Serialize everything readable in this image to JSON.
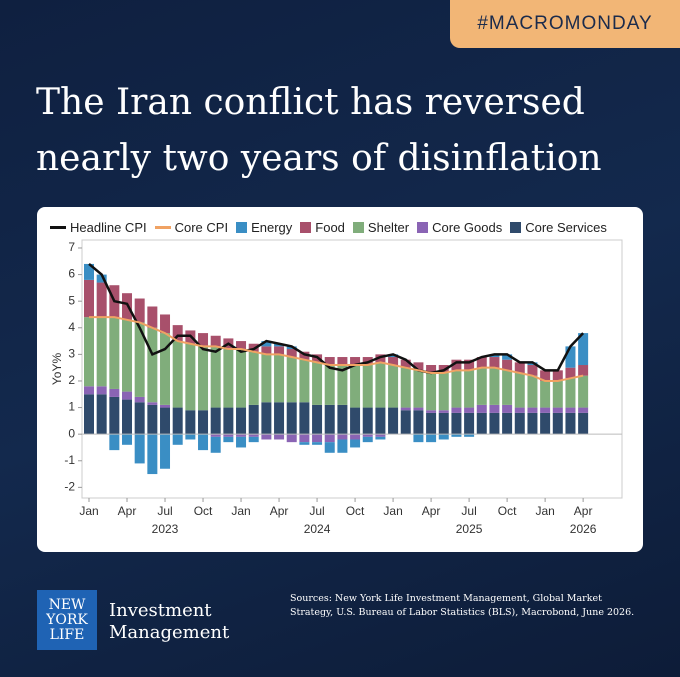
{
  "header": {
    "tag": "#MACROMONDAY",
    "title": [
      "The Iran conflict has reversed",
      "nearly two years of disinflation"
    ]
  },
  "chart_data": {
    "type": "bar",
    "stacked": true,
    "y_label": "YoY%",
    "categories": [
      "Jan",
      null,
      null,
      "Apr",
      null,
      null,
      "Jul",
      null,
      null,
      "Oct",
      null,
      null,
      "Jan",
      null,
      null,
      "Apr",
      null,
      null,
      "Jul",
      null,
      null,
      "Oct",
      null,
      null,
      "Jan",
      null,
      null,
      "Apr",
      null,
      null,
      "Jul",
      null,
      null,
      "Oct",
      null,
      null,
      "Jan",
      null,
      null,
      "Apr"
    ],
    "year_labels": [
      "2023",
      "2024",
      "2025",
      "2026"
    ],
    "ylim": [
      -2.4,
      7.3
    ],
    "yticks": [
      -2,
      -1,
      0,
      1,
      2,
      3,
      4,
      5,
      6,
      7
    ],
    "grid": false,
    "series": [
      {
        "name": "Headline CPI",
        "type": "line",
        "color": "#111111",
        "values": [
          6.4,
          6.0,
          5.0,
          4.9,
          4.0,
          3.0,
          3.2,
          3.7,
          3.7,
          3.2,
          3.1,
          3.4,
          3.1,
          3.2,
          3.5,
          3.4,
          3.3,
          3.0,
          2.9,
          2.5,
          2.4,
          2.6,
          2.7,
          2.9,
          3.0,
          2.8,
          2.4,
          2.3,
          2.4,
          2.7,
          2.7,
          2.9,
          3.0,
          3.0,
          2.7,
          2.7,
          2.4,
          2.4,
          3.3,
          3.8
        ]
      },
      {
        "name": "Core CPI",
        "type": "line",
        "color": "#f0a263",
        "values": [
          4.4,
          4.4,
          4.4,
          4.3,
          4.2,
          4.0,
          3.8,
          3.5,
          3.4,
          3.3,
          3.3,
          3.2,
          3.2,
          3.1,
          3.0,
          3.0,
          2.9,
          2.8,
          2.7,
          2.6,
          2.6,
          2.6,
          2.6,
          2.7,
          2.6,
          2.5,
          2.4,
          2.3,
          2.3,
          2.4,
          2.4,
          2.5,
          2.5,
          2.4,
          2.3,
          2.2,
          2.0,
          2.0,
          2.1,
          2.2
        ]
      },
      {
        "name": "Energy",
        "type": "bar",
        "color": "#3a8ec4",
        "values": [
          0.6,
          0.3,
          -0.6,
          -0.4,
          -1.1,
          -1.5,
          -1.3,
          -0.4,
          -0.2,
          -0.6,
          -0.6,
          -0.2,
          -0.4,
          -0.2,
          0.2,
          0.1,
          0.1,
          -0.1,
          -0.1,
          -0.4,
          -0.5,
          -0.3,
          -0.2,
          -0.1,
          0.1,
          0,
          -0.3,
          -0.3,
          -0.2,
          -0.1,
          -0.1,
          0,
          0.1,
          0.2,
          0,
          0.1,
          0,
          0,
          0.8,
          1.2
        ]
      },
      {
        "name": "Food",
        "type": "bar",
        "color": "#a8506b",
        "values": [
          1.4,
          1.3,
          1.2,
          1.0,
          0.9,
          0.8,
          0.7,
          0.6,
          0.5,
          0.5,
          0.4,
          0.4,
          0.3,
          0.3,
          0.3,
          0.3,
          0.3,
          0.3,
          0.3,
          0.3,
          0.3,
          0.3,
          0.3,
          0.3,
          0.3,
          0.3,
          0.3,
          0.3,
          0.3,
          0.4,
          0.4,
          0.4,
          0.4,
          0.4,
          0.4,
          0.4,
          0.4,
          0.4,
          0.4,
          0.4
        ]
      },
      {
        "name": "Shelter",
        "type": "bar",
        "color": "#80ad7b",
        "values": [
          2.6,
          2.6,
          2.7,
          2.7,
          2.8,
          2.8,
          2.7,
          2.5,
          2.5,
          2.4,
          2.3,
          2.2,
          2.2,
          2.0,
          1.8,
          1.8,
          1.7,
          1.6,
          1.6,
          1.5,
          1.5,
          1.6,
          1.6,
          1.7,
          1.6,
          1.5,
          1.4,
          1.4,
          1.4,
          1.4,
          1.4,
          1.4,
          1.4,
          1.3,
          1.3,
          1.2,
          1.0,
          1.0,
          1.1,
          1.2
        ]
      },
      {
        "name": "Core Goods",
        "type": "bar",
        "color": "#8a64b4",
        "values": [
          0.3,
          0.3,
          0.3,
          0.3,
          0.2,
          0.1,
          0.1,
          0,
          0,
          0,
          -0.1,
          -0.1,
          -0.1,
          -0.1,
          -0.2,
          -0.2,
          -0.3,
          -0.3,
          -0.3,
          -0.3,
          -0.2,
          -0.2,
          -0.1,
          -0.1,
          0,
          0.1,
          0.1,
          0.1,
          0.1,
          0.2,
          0.2,
          0.3,
          0.3,
          0.3,
          0.2,
          0.2,
          0.2,
          0.2,
          0.2,
          0.2
        ]
      },
      {
        "name": "Core Services",
        "type": "bar",
        "color": "#2f4a6b",
        "values": [
          1.5,
          1.5,
          1.4,
          1.3,
          1.2,
          1.1,
          1.0,
          1.0,
          0.9,
          0.9,
          1.0,
          1.0,
          1.0,
          1.1,
          1.2,
          1.2,
          1.2,
          1.2,
          1.1,
          1.1,
          1.1,
          1.0,
          1.0,
          1.0,
          1.0,
          0.9,
          0.9,
          0.8,
          0.8,
          0.8,
          0.8,
          0.8,
          0.8,
          0.8,
          0.8,
          0.8,
          0.8,
          0.8,
          0.8,
          0.8
        ]
      }
    ]
  },
  "footer": {
    "logo": [
      "NEW",
      "YORK",
      "LIFE"
    ],
    "brand": [
      "Investment",
      "Management"
    ],
    "sources": "Sources: New York Life Investment Management, Global Market Strategy, U.S. Bureau of Labor Statistics (BLS), Macrobond, June 2026."
  }
}
